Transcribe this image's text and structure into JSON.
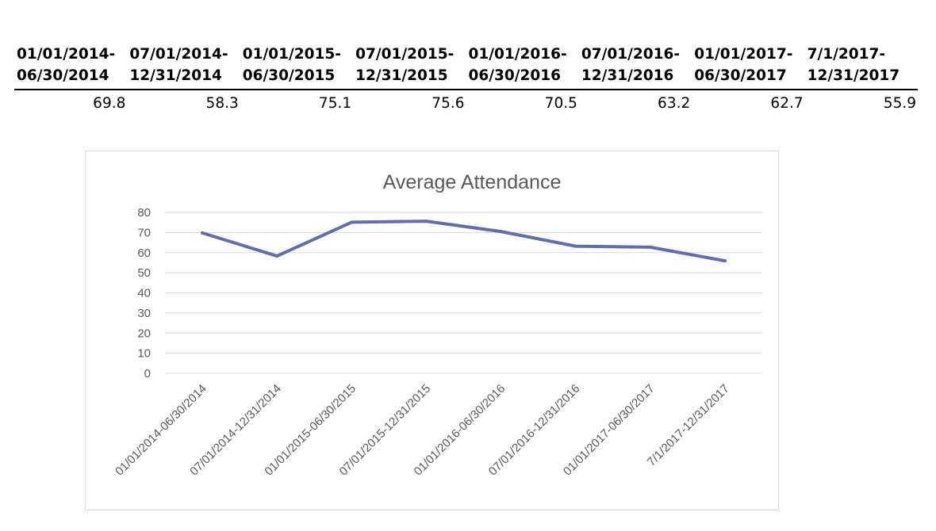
{
  "table": {
    "headers": [
      [
        "01/01/2014-",
        "06/30/2014"
      ],
      [
        "07/01/2014-",
        "12/31/2014"
      ],
      [
        "01/01/2015-",
        "06/30/2015"
      ],
      [
        "07/01/2015-",
        "12/31/2015"
      ],
      [
        "01/01/2016-",
        "06/30/2016"
      ],
      [
        "07/01/2016-",
        "12/31/2016"
      ],
      [
        "01/01/2017-",
        "06/30/2017"
      ],
      [
        "7/1/2017-",
        "12/31/2017"
      ]
    ],
    "values": [
      "69.8",
      "58.3",
      "75.1",
      "75.6",
      "70.5",
      "63.2",
      "62.7",
      "55.9"
    ]
  },
  "chart_data": {
    "type": "line",
    "title": "Average Attendance",
    "xlabel": "",
    "ylabel": "",
    "categories": [
      "01/01/2014-06/30/2014",
      "07/01/2014-12/31/2014",
      "01/01/2015-06/30/2015",
      "07/01/2015-12/31/2015",
      "01/01/2016-06/30/2016",
      "07/01/2016-12/31/2016",
      "01/01/2017-06/30/2017",
      "7/1/2017-12/31/2017"
    ],
    "series": [
      {
        "values": [
          69.8,
          58.3,
          75.1,
          75.6,
          70.5,
          63.2,
          62.7,
          55.9
        ]
      }
    ],
    "ylim": [
      0,
      80
    ],
    "yticks": [
      0,
      10,
      20,
      30,
      40,
      50,
      60,
      70,
      80
    ],
    "grid": true,
    "legend": "none",
    "line_color": "#5b6fb5"
  }
}
